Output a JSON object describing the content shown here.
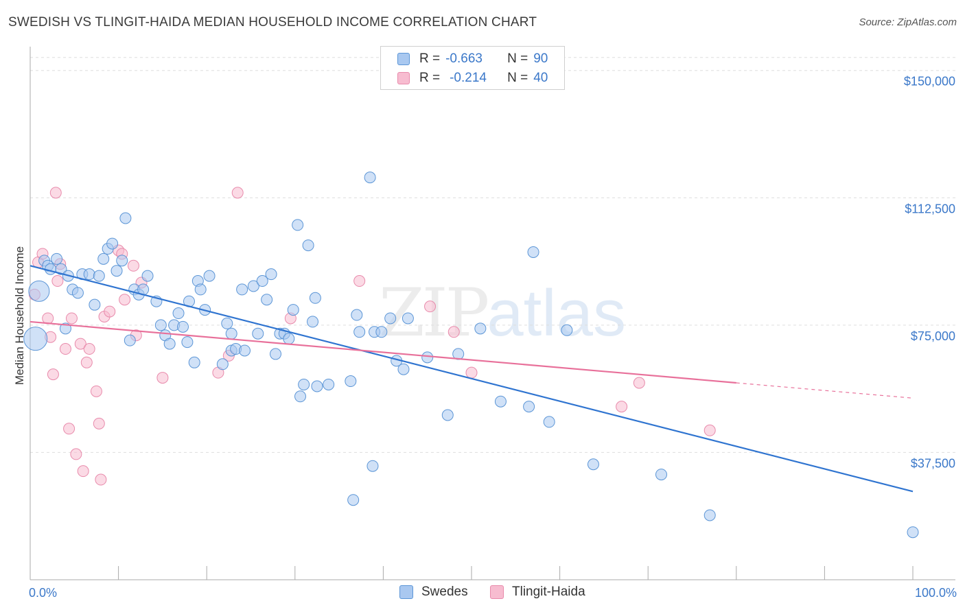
{
  "title": "SWEDISH VS TLINGIT-HAIDA MEDIAN HOUSEHOLD INCOME CORRELATION CHART",
  "source": "Source: ZipAtlas.com",
  "watermark": {
    "zip": "ZIP",
    "atlas": "atlas"
  },
  "legend": {
    "swedes": {
      "r_label": "R =",
      "r_value": "-0.663",
      "n_label": "N =",
      "n_value": "90"
    },
    "tlingit": {
      "r_label": "R =",
      "r_value": "-0.214",
      "n_label": "N =",
      "n_value": "40"
    }
  },
  "bottom_legend": {
    "swedes": "Swedes",
    "tlingit": "Tlingit-Haida"
  },
  "colors": {
    "swedes_fill": "#a9c8f0",
    "swedes_stroke": "#5b95d6",
    "swedes_line": "#2f74d0",
    "tlingit_fill": "#f7bcd0",
    "tlingit_stroke": "#e88aab",
    "tlingit_line": "#e8709a",
    "axis_text": "#3b78c9",
    "grid": "#dddddd"
  },
  "chart_data": {
    "type": "scatter",
    "title": "SWEDISH VS TLINGIT-HAIDA MEDIAN HOUSEHOLD INCOME CORRELATION CHART",
    "xlabel": "",
    "ylabel": "Median Household Income",
    "xlim": [
      0,
      100
    ],
    "ylim": [
      0,
      155000
    ],
    "x_tick_labels": [
      "0.0%",
      "100.0%"
    ],
    "y_ticks": [
      37500,
      75000,
      112500,
      150000
    ],
    "y_tick_labels": [
      "$37,500",
      "$75,000",
      "$112,500",
      "$150,000"
    ],
    "series": [
      {
        "name": "Swedes",
        "trend": {
          "x": [
            0,
            100
          ],
          "y": [
            92500,
            26000
          ],
          "dashed_from": null
        },
        "points": [
          [
            1.0,
            85000
          ],
          [
            0.6,
            71000
          ],
          [
            1.6,
            94000
          ],
          [
            2.0,
            92500
          ],
          [
            2.3,
            91500
          ],
          [
            3.0,
            94500
          ],
          [
            3.5,
            91500
          ],
          [
            4.3,
            89500
          ],
          [
            4.8,
            85500
          ],
          [
            5.4,
            84500
          ],
          [
            5.9,
            90000
          ],
          [
            6.7,
            90000
          ],
          [
            7.3,
            81000
          ],
          [
            7.8,
            89500
          ],
          [
            8.3,
            94500
          ],
          [
            8.8,
            97500
          ],
          [
            9.3,
            99000
          ],
          [
            9.8,
            91000
          ],
          [
            10.4,
            94000
          ],
          [
            10.8,
            106500
          ],
          [
            11.3,
            70500
          ],
          [
            11.8,
            85500
          ],
          [
            12.3,
            84000
          ],
          [
            12.8,
            85500
          ],
          [
            13.3,
            89500
          ],
          [
            14.3,
            82000
          ],
          [
            14.8,
            75000
          ],
          [
            15.3,
            72000
          ],
          [
            15.8,
            69500
          ],
          [
            16.3,
            75000
          ],
          [
            16.8,
            78500
          ],
          [
            17.3,
            74500
          ],
          [
            17.8,
            70000
          ],
          [
            18.0,
            82000
          ],
          [
            18.6,
            64000
          ],
          [
            19.0,
            88000
          ],
          [
            19.3,
            85500
          ],
          [
            19.8,
            79500
          ],
          [
            20.3,
            89500
          ],
          [
            21.8,
            63500
          ],
          [
            22.3,
            75500
          ],
          [
            22.8,
            72500
          ],
          [
            22.8,
            67500
          ],
          [
            23.3,
            68000
          ],
          [
            24.0,
            85500
          ],
          [
            24.3,
            67500
          ],
          [
            25.3,
            86500
          ],
          [
            25.8,
            72500
          ],
          [
            26.3,
            88000
          ],
          [
            26.8,
            82500
          ],
          [
            27.3,
            90000
          ],
          [
            27.8,
            66500
          ],
          [
            28.3,
            72500
          ],
          [
            28.8,
            72500
          ],
          [
            29.3,
            71000
          ],
          [
            29.8,
            79500
          ],
          [
            30.3,
            104500
          ],
          [
            30.6,
            54000
          ],
          [
            31.0,
            57500
          ],
          [
            31.5,
            98500
          ],
          [
            32.0,
            76000
          ],
          [
            32.3,
            83000
          ],
          [
            32.5,
            57000
          ],
          [
            33.8,
            57500
          ],
          [
            36.3,
            58500
          ],
          [
            36.6,
            23500
          ],
          [
            37.0,
            78000
          ],
          [
            37.3,
            73000
          ],
          [
            38.5,
            118500
          ],
          [
            38.8,
            33500
          ],
          [
            39.0,
            73000
          ],
          [
            39.8,
            73000
          ],
          [
            40.8,
            77000
          ],
          [
            41.5,
            64500
          ],
          [
            42.3,
            62000
          ],
          [
            42.8,
            77000
          ],
          [
            45.0,
            65500
          ],
          [
            47.3,
            48500
          ],
          [
            48.5,
            66500
          ],
          [
            51.0,
            74000
          ],
          [
            53.3,
            52500
          ],
          [
            56.5,
            51000
          ],
          [
            57.0,
            96500
          ],
          [
            58.8,
            46500
          ],
          [
            60.8,
            73500
          ],
          [
            63.8,
            34000
          ],
          [
            71.5,
            31000
          ],
          [
            77.0,
            19000
          ],
          [
            100.0,
            14000
          ],
          [
            4.0,
            74000
          ]
        ],
        "point_sizes": {
          "default": 16,
          "large": [
            [
              1.0,
              85000,
              30
            ],
            [
              0.6,
              71000,
              34
            ]
          ]
        }
      },
      {
        "name": "Tlingit-Haida",
        "trend": {
          "x": [
            0,
            100
          ],
          "y": [
            76000,
            53500
          ],
          "dashed_from": 80
        },
        "points": [
          [
            0.5,
            84000
          ],
          [
            0.9,
            93500
          ],
          [
            1.4,
            96000
          ],
          [
            2.0,
            77000
          ],
          [
            2.3,
            71500
          ],
          [
            2.6,
            60500
          ],
          [
            2.9,
            114000
          ],
          [
            3.1,
            88000
          ],
          [
            3.4,
            93000
          ],
          [
            4.0,
            68000
          ],
          [
            4.4,
            44500
          ],
          [
            4.7,
            77000
          ],
          [
            5.2,
            37000
          ],
          [
            5.7,
            69500
          ],
          [
            6.0,
            32000
          ],
          [
            6.4,
            64000
          ],
          [
            6.7,
            68000
          ],
          [
            7.5,
            55500
          ],
          [
            7.8,
            46000
          ],
          [
            8.0,
            29500
          ],
          [
            8.4,
            77500
          ],
          [
            9.0,
            79000
          ],
          [
            10.0,
            97000
          ],
          [
            10.4,
            96000
          ],
          [
            10.7,
            82500
          ],
          [
            11.7,
            92500
          ],
          [
            12.0,
            72000
          ],
          [
            12.6,
            87500
          ],
          [
            15.0,
            59500
          ],
          [
            21.3,
            61000
          ],
          [
            22.5,
            66000
          ],
          [
            23.5,
            114000
          ],
          [
            29.5,
            77000
          ],
          [
            37.3,
            88000
          ],
          [
            45.3,
            80500
          ],
          [
            48.0,
            73000
          ],
          [
            50.0,
            61000
          ],
          [
            67.0,
            51000
          ],
          [
            69.0,
            58000
          ],
          [
            77.0,
            44000
          ]
        ]
      }
    ]
  }
}
